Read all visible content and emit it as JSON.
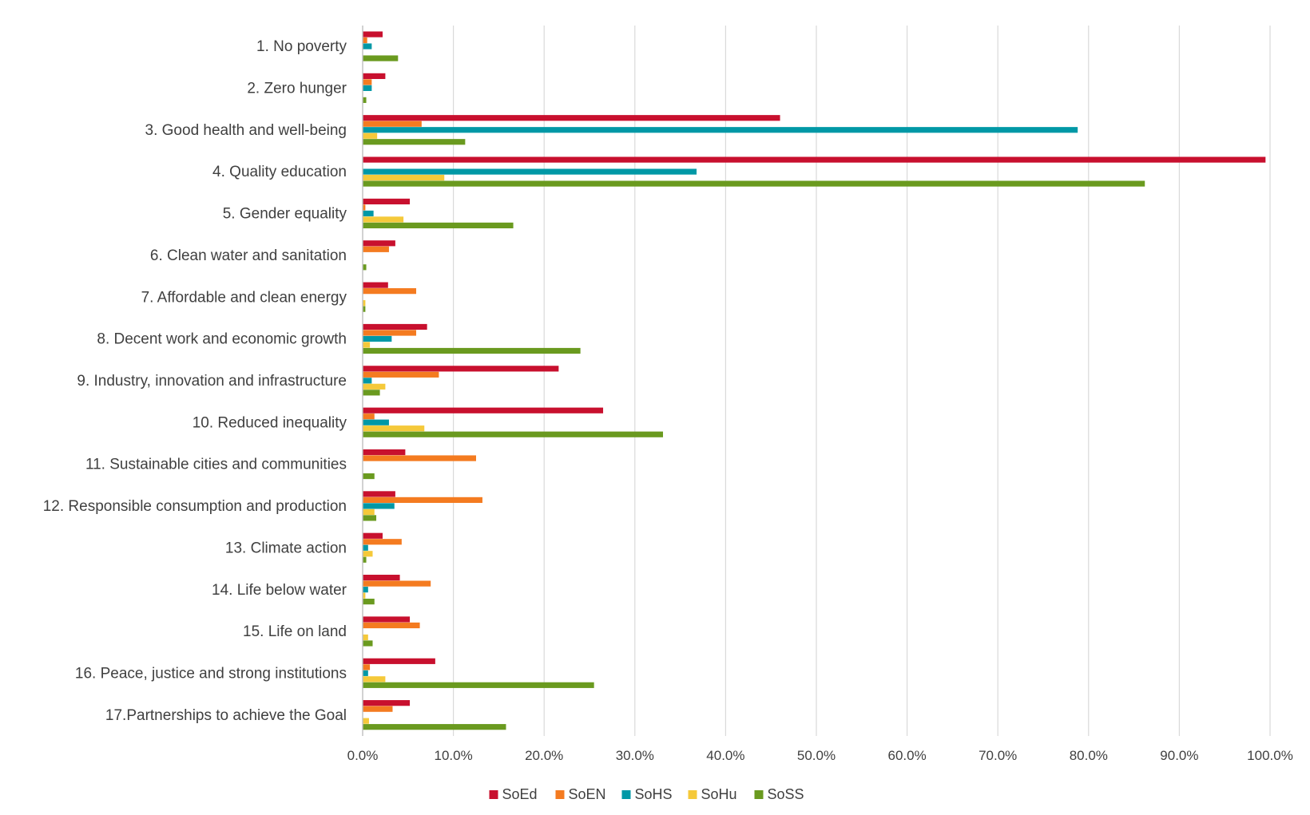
{
  "chart_data": {
    "type": "bar",
    "orientation": "horizontal",
    "title": "",
    "xlabel": "",
    "ylabel": "",
    "xlim": [
      0,
      100
    ],
    "grid": true,
    "legend_position": "bottom",
    "categories": [
      "1. No poverty",
      "2. Zero hunger",
      "3. Good health and well-being",
      "4. Quality education",
      "5. Gender equality",
      "6. Clean water and sanitation",
      "7. Affordable and clean energy",
      "8. Decent work and economic growth",
      "9. Industry, innovation and infrastructure",
      "10. Reduced inequality",
      "11. Sustainable cities and communities",
      "12. Responsible consumption and production",
      "13. Climate action",
      "14. Life below water",
      "15. Life on land",
      "16. Peace, justice and strong institutions",
      "17.Partnerships to achieve the Goal"
    ],
    "x_ticks": [
      "0.0%",
      "10.0%",
      "20.0%",
      "30.0%",
      "40.0%",
      "50.0%",
      "60.0%",
      "70.0%",
      "80.0%",
      "90.0%",
      "100.0%"
    ],
    "series": [
      {
        "name": "SoEd",
        "color": "#C8102E",
        "values": [
          2.2,
          2.5,
          46.0,
          99.5,
          5.2,
          3.6,
          2.8,
          7.1,
          21.6,
          26.5,
          4.7,
          3.6,
          2.2,
          4.1,
          5.2,
          8.0,
          5.2
        ]
      },
      {
        "name": "SoEN",
        "color": "#F47B20",
        "values": [
          0.5,
          1.0,
          6.5,
          0.0,
          0.3,
          2.9,
          5.9,
          5.9,
          8.4,
          1.3,
          12.5,
          13.2,
          4.3,
          7.5,
          6.3,
          0.8,
          3.3
        ]
      },
      {
        "name": "SoHS",
        "color": "#0098A6",
        "values": [
          1.0,
          1.0,
          78.8,
          36.8,
          1.2,
          0.0,
          0.0,
          3.2,
          1.0,
          2.9,
          0.0,
          3.5,
          0.6,
          0.6,
          0.0,
          0.6,
          0.0
        ]
      },
      {
        "name": "SoHu",
        "color": "#F5C93A",
        "values": [
          0.0,
          0.0,
          1.6,
          9.0,
          4.5,
          0.0,
          0.3,
          0.8,
          2.5,
          6.8,
          0.0,
          1.3,
          1.1,
          0.3,
          0.6,
          2.5,
          0.7
        ]
      },
      {
        "name": "SoSS",
        "color": "#6A9A1F",
        "values": [
          3.9,
          0.4,
          11.3,
          86.2,
          16.6,
          0.4,
          0.3,
          24.0,
          1.9,
          33.1,
          1.3,
          1.5,
          0.4,
          1.3,
          1.1,
          25.5,
          15.8
        ]
      }
    ]
  }
}
